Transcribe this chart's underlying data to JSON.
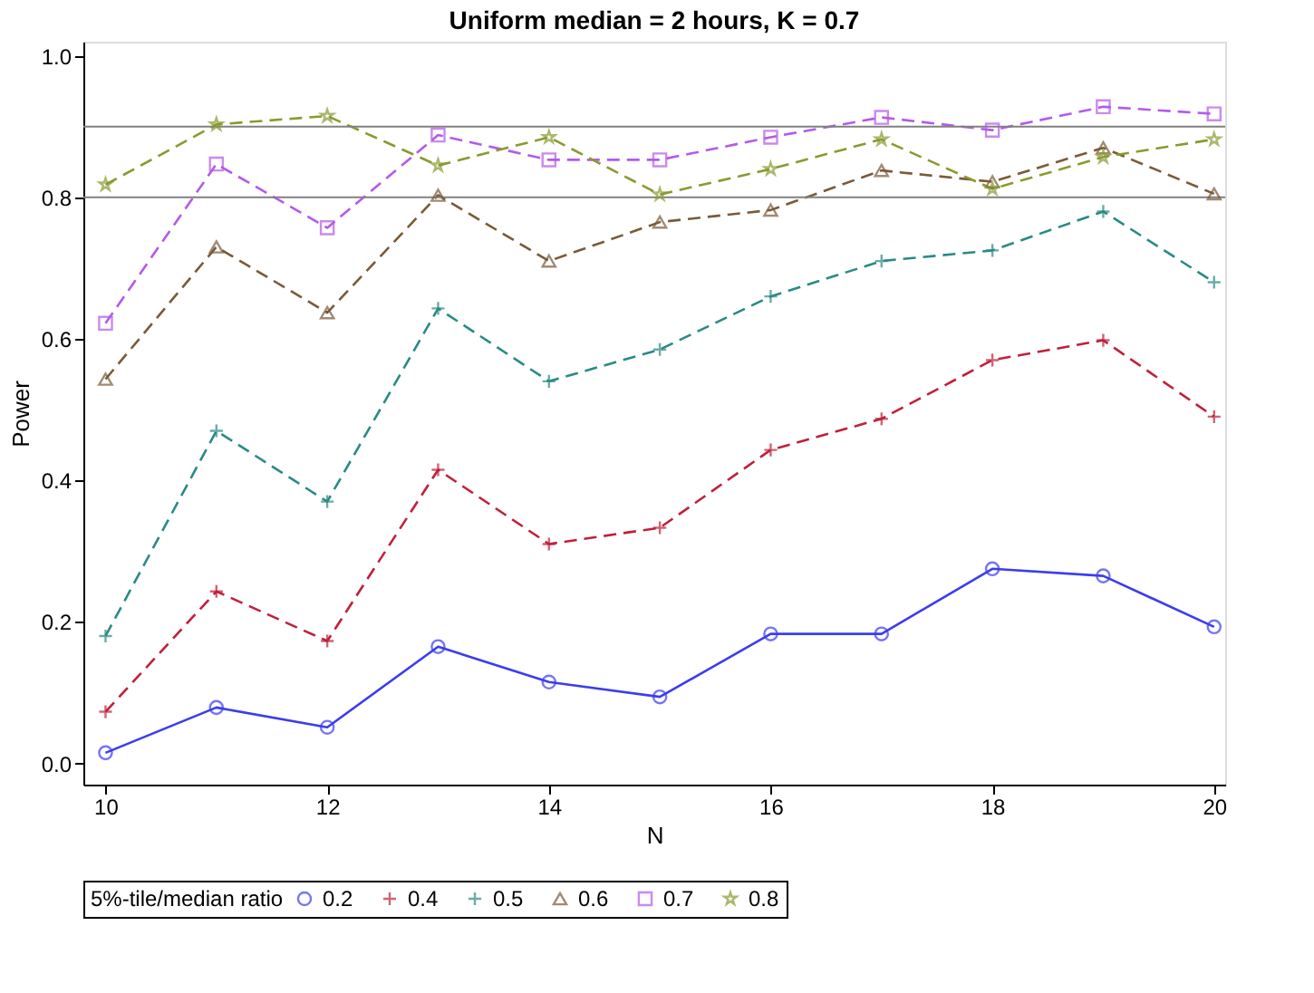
{
  "chart_data": {
    "type": "line",
    "title": "Uniform median = 2 hours, K = 0.7",
    "xlabel": "N",
    "ylabel": "Power",
    "legend_title": "5%-tile/median ratio",
    "x": [
      10,
      11,
      12,
      13,
      14,
      15,
      16,
      17,
      18,
      19,
      20
    ],
    "xlim": [
      9.8,
      20.1
    ],
    "xticks": [
      10,
      12,
      14,
      16,
      18,
      20
    ],
    "ylim": [
      -0.03,
      1.02
    ],
    "yticks": [
      {
        "value": 0,
        "label": "0.0"
      },
      0.2,
      0.4,
      0.6,
      0.8,
      {
        "value": 1,
        "label": "1.0"
      }
    ],
    "grid": false,
    "legend": "bottom",
    "ref_lines": [
      {
        "axis": "y",
        "value": 0.8,
        "color": "#808080"
      },
      {
        "axis": "y",
        "value": 0.9,
        "color": "#808080"
      }
    ],
    "series": [
      {
        "name": "0.2",
        "color": "#3c3cf0",
        "marker": "circle",
        "line_style": "solid",
        "values": [
          0.015,
          0.079,
          0.051,
          0.165,
          0.115,
          0.094,
          0.183,
          0.183,
          0.275,
          0.265,
          0.193
        ]
      },
      {
        "name": "0.4",
        "color": "#c0203a",
        "marker": "cross",
        "line_style": "dashed",
        "values": [
          0.073,
          0.243,
          0.173,
          0.415,
          0.31,
          0.333,
          0.443,
          0.487,
          0.57,
          0.598,
          0.49
        ]
      },
      {
        "name": "0.5",
        "color": "#2a8a84",
        "marker": "cross",
        "line_style": "dashed",
        "values": [
          0.18,
          0.47,
          0.37,
          0.643,
          0.54,
          0.585,
          0.66,
          0.71,
          0.725,
          0.78,
          0.68
        ]
      },
      {
        "name": "0.6",
        "color": "#7a5a38",
        "marker": "triangle",
        "line_style": "dashed",
        "values": [
          0.543,
          0.73,
          0.637,
          0.803,
          0.71,
          0.765,
          0.782,
          0.838,
          0.822,
          0.87,
          0.805
        ]
      },
      {
        "name": "0.7",
        "color": "#b45ae8",
        "marker": "square",
        "line_style": "dashed",
        "values": [
          0.622,
          0.847,
          0.757,
          0.888,
          0.853,
          0.853,
          0.885,
          0.913,
          0.895,
          0.928,
          0.918
        ]
      },
      {
        "name": "0.8",
        "color": "#8a9a30",
        "marker": "star",
        "line_style": "dashed",
        "values": [
          0.818,
          0.903,
          0.915,
          0.845,
          0.885,
          0.804,
          0.84,
          0.882,
          0.812,
          0.857,
          0.882
        ]
      }
    ]
  }
}
